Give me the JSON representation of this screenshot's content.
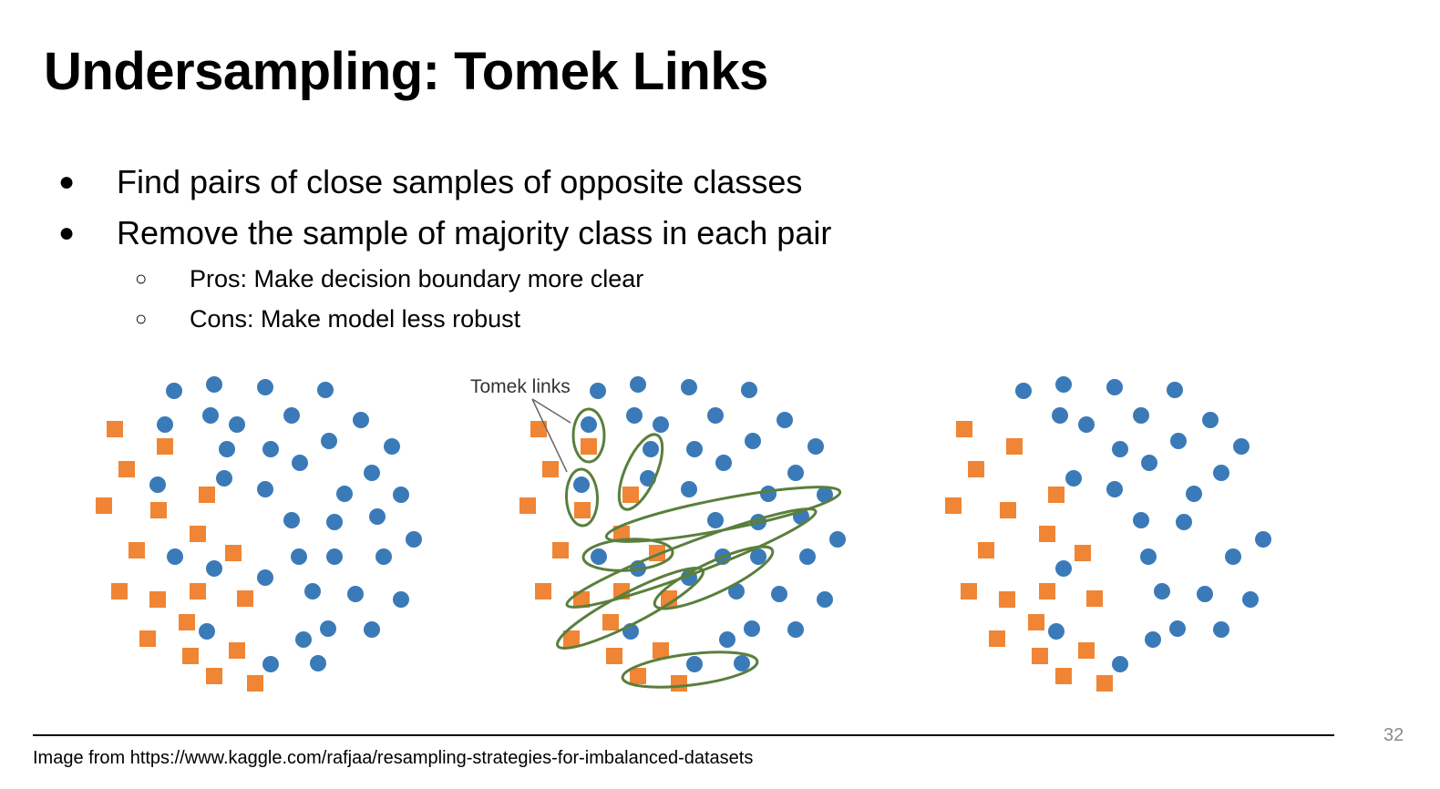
{
  "slide": {
    "title": "Undersampling: Tomek Links",
    "bullets": [
      "Find pairs of close samples of opposite classes",
      "Remove the sample of majority class in each pair"
    ],
    "subbullets": [
      "Pros: Make decision boundary more clear",
      "Cons: Make model less robust"
    ],
    "annotation": "Tomek links",
    "credit": "Image from https://www.kaggle.com/rafjaa/resampling-strategies-for-imbalanced-datasets",
    "page_number": "32"
  },
  "colors": {
    "majority_circle": "#3a7ab8",
    "minority_square": "#f08535",
    "link_ellipse": "#5a7f3c"
  }
}
